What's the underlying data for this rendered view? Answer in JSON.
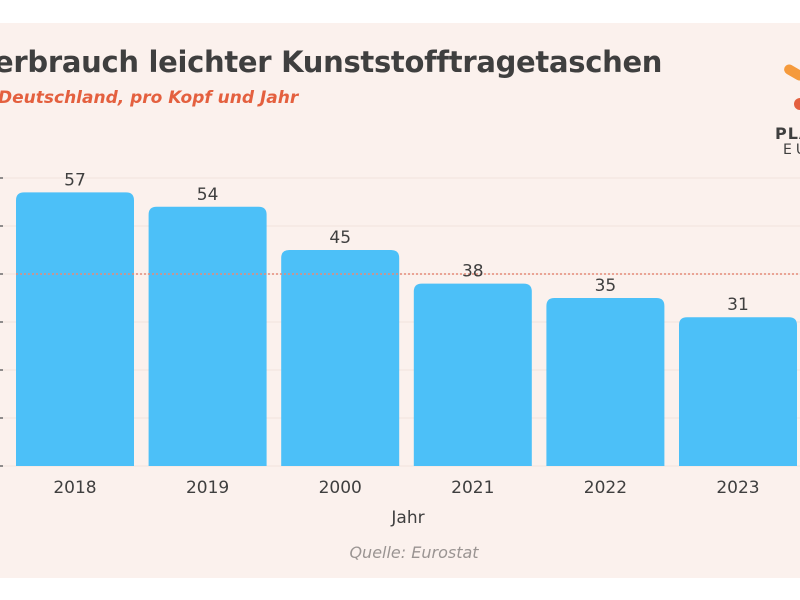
{
  "header": {
    "title": "erbrauch leichter Kunststofftragetaschen",
    "subtitle": "Deutschland, pro Kopf und Jahr"
  },
  "logo": {
    "line1": "PLA",
    "line2": "EU",
    "colors": {
      "orange": "#f59a3c",
      "red": "#e4603f"
    }
  },
  "footer": {
    "source": "Quelle: Eurostat"
  },
  "colors": {
    "bar": "#4cc0f8",
    "background": "#fbf1ed",
    "reference_line": "#e58a78",
    "text": "#3f3f3f"
  },
  "chart_data": {
    "type": "bar",
    "title": "erbrauch leichter Kunststofftragetaschen",
    "subtitle": "Deutschland, pro Kopf und Jahr",
    "xlabel": "Jahr",
    "ylabel": "",
    "categories": [
      "2018",
      "2019",
      "2000",
      "2021",
      "2022",
      "2023"
    ],
    "values": [
      57,
      54,
      45,
      38,
      35,
      31
    ],
    "data_labels": [
      "57",
      "54",
      "45",
      "38",
      "35",
      "31"
    ],
    "ylim": [
      0,
      60
    ],
    "yticks": [
      0,
      10,
      20,
      30,
      40,
      50,
      60
    ],
    "grid": true,
    "reference_line": {
      "value": 40,
      "style": "dotted"
    },
    "source": "Quelle: Eurostat"
  }
}
